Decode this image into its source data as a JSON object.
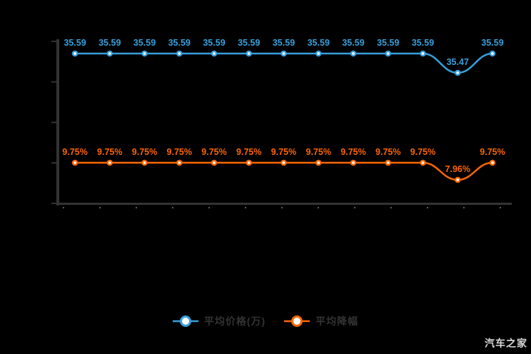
{
  "watermark": "汽车之家",
  "colors": {
    "background": "#000000",
    "axis": "#333333",
    "price_series": "#37a0dc",
    "discount_series": "#fc6600",
    "legend_text": "#333333",
    "watermark_text": "#d9d9d9"
  },
  "legend": {
    "items": [
      {
        "label": "平均价格(万)",
        "color": "#37a0dc"
      },
      {
        "label": "平均降幅",
        "color": "#fc6600"
      }
    ]
  },
  "chart_data": {
    "type": "line",
    "title": "",
    "xlabel": "",
    "ylabel": "",
    "grid": false,
    "legend_position": "bottom",
    "x_axis": {
      "labels_visible": false,
      "points": 13
    },
    "y_axis": {
      "labels_visible": false,
      "tick_count": 5
    },
    "series": [
      {
        "name": "平均价格(万)",
        "color": "#37a0dc",
        "values": [
          35.59,
          35.59,
          35.59,
          35.59,
          35.59,
          35.59,
          35.59,
          35.59,
          35.59,
          35.59,
          35.59,
          35.47,
          35.59
        ],
        "labels": [
          "35.59",
          "35.59",
          "35.59",
          "35.59",
          "35.59",
          "35.59",
          "35.59",
          "35.59",
          "35.59",
          "35.59",
          "35.59",
          "35.47",
          "35.59"
        ]
      },
      {
        "name": "平均降幅",
        "color": "#fc6600",
        "values": [
          9.75,
          9.75,
          9.75,
          9.75,
          9.75,
          9.75,
          9.75,
          9.75,
          9.75,
          9.75,
          9.75,
          7.96,
          9.75
        ],
        "labels": [
          "9.75%",
          "9.75%",
          "9.75%",
          "9.75%",
          "9.75%",
          "9.75%",
          "9.75%",
          "9.75%",
          "9.75%",
          "9.75%",
          "9.75%",
          "7.96%",
          "9.75%"
        ]
      }
    ]
  }
}
